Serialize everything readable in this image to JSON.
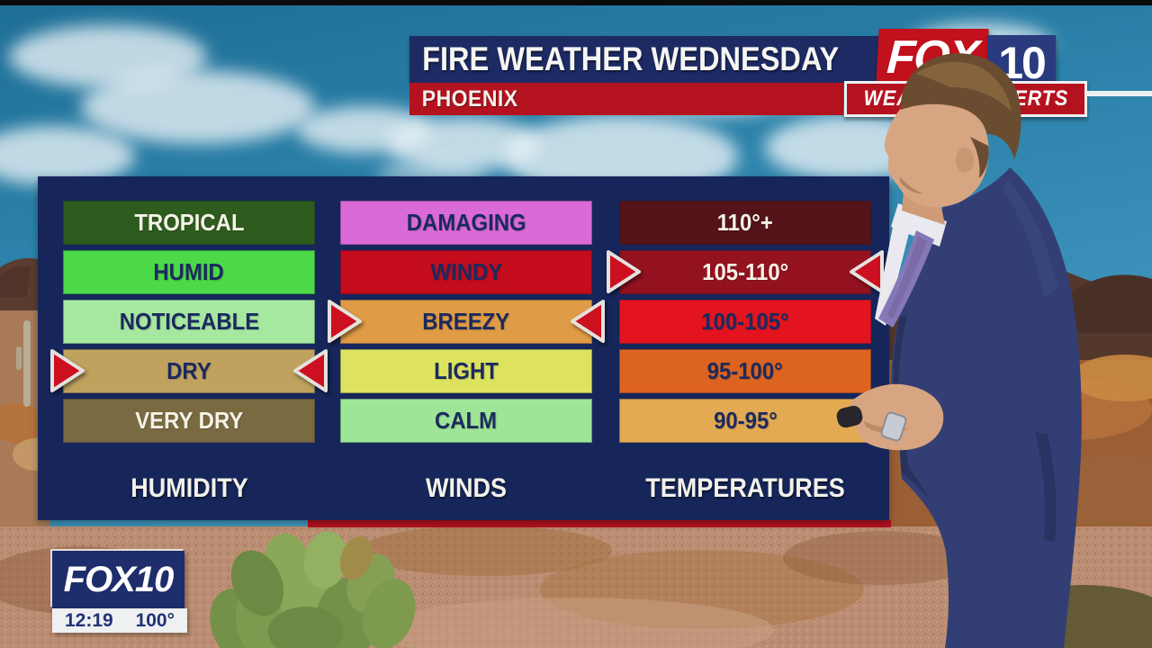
{
  "header": {
    "title": "FIRE WEATHER WEDNESDAY",
    "location": "PHOENIX",
    "logo": {
      "fox": "FOX",
      "ten": "10"
    },
    "banner": "WEATHER EXPERTS"
  },
  "panel": {
    "columns": [
      {
        "id": "humidity",
        "label": "HUMIDITY",
        "selected_index": 3,
        "rows": [
          {
            "text": "TROPICAL",
            "bg": "#2e5c1e",
            "fg": "#f4f2e6"
          },
          {
            "text": "HUMID",
            "bg": "#4cd948",
            "fg": "#1b2a5e"
          },
          {
            "text": "NOTICEABLE",
            "bg": "#a6e8a0",
            "fg": "#1b2a5e"
          },
          {
            "text": "DRY",
            "bg": "#c0a25f",
            "fg": "#1b2a5e"
          },
          {
            "text": "VERY DRY",
            "bg": "#7a6a42",
            "fg": "#f4f2e6"
          }
        ]
      },
      {
        "id": "winds",
        "label": "WINDS",
        "selected_index": 2,
        "rows": [
          {
            "text": "DAMAGING",
            "bg": "#da6ad8",
            "fg": "#1b2a5e"
          },
          {
            "text": "WINDY",
            "bg": "#c40c1c",
            "fg": "#1b2a5e"
          },
          {
            "text": "BREEZY",
            "bg": "#e09b46",
            "fg": "#1b2a5e"
          },
          {
            "text": "LIGHT",
            "bg": "#dde35e",
            "fg": "#1b2a5e"
          },
          {
            "text": "CALM",
            "bg": "#9fe598",
            "fg": "#1b2a5e"
          }
        ]
      },
      {
        "id": "temperatures",
        "label": "TEMPERATURES",
        "selected_index": 1,
        "rows": [
          {
            "text": "110°+",
            "bg": "#541319",
            "fg": "#f4f2e6"
          },
          {
            "text": "105-110°",
            "bg": "#941220",
            "fg": "#f4f2e6"
          },
          {
            "text": "100-105°",
            "bg": "#e31420",
            "fg": "#1b2a5e"
          },
          {
            "text": "95-100°",
            "bg": "#dd6420",
            "fg": "#1b2a5e"
          },
          {
            "text": "90-95°",
            "bg": "#e3aa52",
            "fg": "#1b2a5e"
          }
        ]
      }
    ]
  },
  "bug": {
    "station": "FOX10",
    "time": "12:19",
    "temperature": "100°"
  },
  "colors": {
    "panel_navy": "#16265a",
    "brand_red": "#b5121f",
    "arrow_red": "#cc1020",
    "header_navy": "#1d2a63"
  },
  "chart_data": {
    "type": "table",
    "title": "FIRE WEATHER WEDNESDAY",
    "subtitle": "PHOENIX",
    "columns": [
      "HUMIDITY",
      "WINDS",
      "TEMPERATURES"
    ],
    "scales": {
      "HUMIDITY": [
        "TROPICAL",
        "HUMID",
        "NOTICEABLE",
        "DRY",
        "VERY DRY"
      ],
      "WINDS": [
        "DAMAGING",
        "WINDY",
        "BREEZY",
        "LIGHT",
        "CALM"
      ],
      "TEMPERATURES": [
        "110°+",
        "105-110°",
        "100-105°",
        "95-100°",
        "90-95°"
      ]
    },
    "selected": {
      "HUMIDITY": "DRY",
      "WINDS": "BREEZY",
      "TEMPERATURES": "105-110°"
    },
    "legend_position": "none",
    "grid": false
  }
}
